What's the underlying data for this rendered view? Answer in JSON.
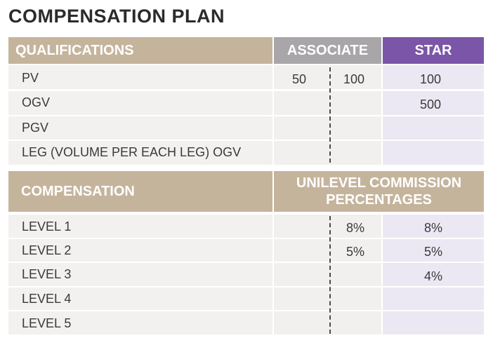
{
  "title": "COMPENSATION PLAN",
  "qual": {
    "headers": {
      "qualifications": "QUALIFICATIONS",
      "associate": "ASSOCIATE",
      "star": "STAR"
    },
    "rows": [
      {
        "label": "PV",
        "assoc_a": "50",
        "assoc_b": "100",
        "star": "100"
      },
      {
        "label": "OGV",
        "assoc_a": "",
        "assoc_b": "",
        "star": "500"
      },
      {
        "label": "PGV",
        "assoc_a": "",
        "assoc_b": "",
        "star": ""
      },
      {
        "label": "LEG (VOLUME PER EACH LEG) OGV",
        "assoc_a": "",
        "assoc_b": "",
        "star": ""
      }
    ]
  },
  "comp": {
    "headers": {
      "compensation": "COMPENSATION",
      "unilevel_line1": "UNILEVEL COMMISSION",
      "unilevel_line2": "PERCENTAGES"
    },
    "rows": [
      {
        "label": "LEVEL 1",
        "assoc": "8%",
        "star": "8%"
      },
      {
        "label": "LEVEL 2",
        "assoc": "5%",
        "star": "5%"
      },
      {
        "label": "LEVEL 3",
        "assoc": "",
        "star": "4%"
      },
      {
        "label": "LEVEL 4",
        "assoc": "",
        "star": ""
      },
      {
        "label": "LEVEL 5",
        "assoc": "",
        "star": ""
      }
    ]
  },
  "colors": {
    "tan": "#c5b49c",
    "gray": "#a8a6a8",
    "purple": "#7b55a7",
    "lavender": "#ece8f3"
  }
}
